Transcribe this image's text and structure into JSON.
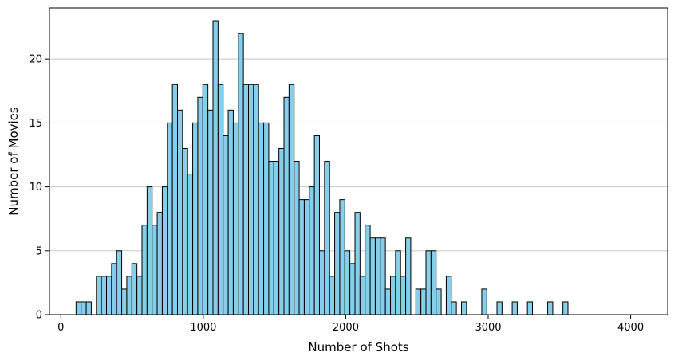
{
  "chart_data": {
    "type": "bar",
    "subtype": "histogram",
    "title": "",
    "xlabel": "Number of Shots",
    "ylabel": "Number of Movies",
    "xlim": [
      -80,
      4260
    ],
    "ylim": [
      0,
      24
    ],
    "xticks": [
      0,
      1000,
      2000,
      3000,
      4000
    ],
    "yticks": [
      0,
      5,
      10,
      15,
      20
    ],
    "grid": "y",
    "bar_color": "#87CEEB",
    "edge_color": "#000000",
    "grid_color": "#c8c8c8",
    "bin_start": 0,
    "bin_width": 35.6,
    "counts": [
      0,
      0,
      0,
      1,
      1,
      1,
      0,
      3,
      3,
      3,
      4,
      5,
      2,
      3,
      4,
      3,
      7,
      10,
      7,
      8,
      10,
      15,
      18,
      16,
      13,
      11,
      15,
      17,
      18,
      16,
      23,
      18,
      14,
      16,
      15,
      22,
      18,
      18,
      18,
      15,
      15,
      12,
      12,
      13,
      17,
      18,
      12,
      9,
      9,
      10,
      14,
      5,
      12,
      3,
      8,
      9,
      5,
      4,
      8,
      3,
      7,
      6,
      6,
      6,
      2,
      3,
      5,
      3,
      6,
      0,
      2,
      2,
      5,
      5,
      2,
      0,
      3,
      1,
      0,
      1,
      0,
      0,
      0,
      2,
      0,
      0,
      1,
      0,
      0,
      1,
      0,
      0,
      1,
      0,
      0,
      0,
      1,
      0,
      0,
      1,
      0,
      0,
      0,
      0,
      0,
      0,
      0
    ]
  }
}
